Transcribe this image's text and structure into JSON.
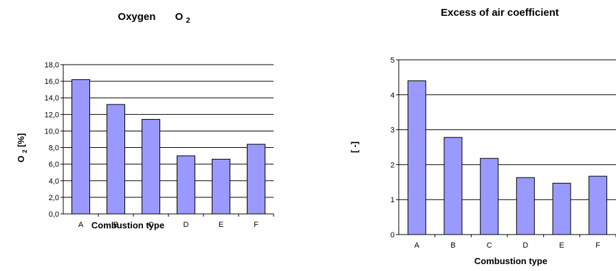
{
  "chart_data": [
    {
      "type": "bar",
      "title": "Oxygen",
      "title_formula": {
        "base": "O",
        "sub": "2"
      },
      "xlabel": "Combustion type",
      "ylabel": {
        "base": "O",
        "sub": "2",
        "rest": " [%]"
      },
      "categories": [
        "A",
        "B",
        "C",
        "D",
        "E",
        "F"
      ],
      "values": [
        16.2,
        13.2,
        11.4,
        7.0,
        6.6,
        8.4
      ],
      "ylim": [
        0,
        18
      ],
      "yticks": [
        "0,0",
        "2,0",
        "4,0",
        "6,0",
        "8,0",
        "10,0",
        "12,0",
        "14,0",
        "16,0",
        "18,0"
      ],
      "grid": true,
      "legend": "none",
      "bar_color": "#9999ff"
    },
    {
      "type": "bar",
      "title": "Excess of air coefficient",
      "xlabel": "Combustion type",
      "ylabel": "[ -]",
      "categories": [
        "A",
        "B",
        "C",
        "D",
        "E",
        "F"
      ],
      "values": [
        4.4,
        2.78,
        2.18,
        1.63,
        1.47,
        1.67
      ],
      "ylim": [
        0,
        5
      ],
      "yticks": [
        "0",
        "1",
        "2",
        "3",
        "4",
        "5"
      ],
      "grid": true,
      "legend": "none",
      "bar_color": "#9999ff"
    }
  ]
}
